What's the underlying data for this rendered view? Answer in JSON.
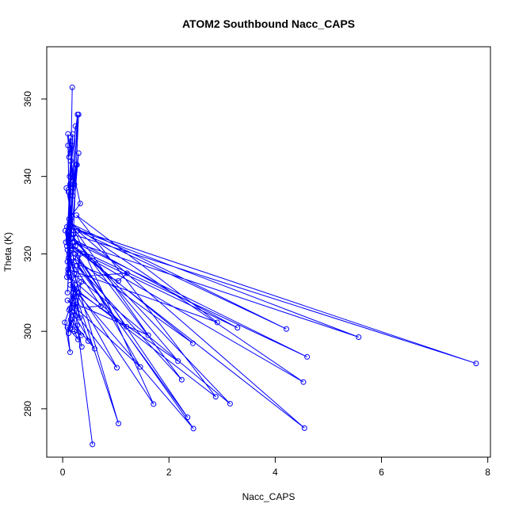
{
  "chart_data": {
    "type": "line",
    "title": "ATOM2 Southbound Nacc_CAPS",
    "xlabel": "Nacc_CAPS",
    "ylabel": "Theta (K)",
    "xlim": [
      -0.3,
      8.05
    ],
    "ylim": [
      267.5,
      373.5
    ],
    "xticks": [
      0,
      2,
      4,
      6,
      8
    ],
    "yticks": [
      280,
      300,
      320,
      340,
      360
    ],
    "grid": false,
    "line_color": "#0000ff",
    "markers": "open-circle",
    "series": [
      {
        "points": [
          [
            0.18,
            363.0
          ],
          [
            0.12,
            320.0
          ],
          [
            0.24,
            353.0
          ],
          [
            0.09,
            310.0
          ],
          [
            0.28,
            356.0
          ],
          [
            0.13,
            340.0
          ],
          [
            0.17,
            348.0
          ],
          [
            0.11,
            326.0
          ],
          [
            0.3,
            346.0
          ],
          [
            0.1,
            315.0
          ],
          [
            0.19,
            351.0
          ],
          [
            0.14,
            338.0
          ],
          [
            0.27,
            343.0
          ],
          [
            0.08,
            322.0
          ],
          [
            0.15,
            344.0
          ],
          [
            0.33,
            333.0
          ],
          [
            0.12,
            329.0
          ],
          [
            0.1,
            351.0
          ],
          [
            0.22,
            338.0
          ],
          [
            0.07,
            337.0
          ],
          [
            0.16,
            330.0
          ],
          [
            0.08,
            327.0
          ],
          [
            0.06,
            323.0
          ],
          [
            0.19,
            335.0
          ],
          [
            0.09,
            321.0
          ],
          [
            0.24,
            322.0
          ],
          [
            0.11,
            336.0
          ],
          [
            0.17,
            306.0
          ],
          [
            0.1,
            348.0
          ],
          [
            0.12,
            345.0
          ],
          [
            0.14,
            350.0
          ],
          [
            0.2,
            337.0
          ],
          [
            0.25,
            343.0
          ],
          [
            0.15,
            329.0
          ],
          [
            0.3,
            356.0
          ],
          [
            0.2,
            325.0
          ],
          [
            7.78,
            291.7
          ],
          [
            0.12,
            327.0
          ],
          [
            5.57,
            298.5
          ],
          [
            0.22,
            323.0
          ],
          [
            4.6,
            293.4
          ],
          [
            0.16,
            322.0
          ],
          [
            4.55,
            275.0
          ],
          [
            0.28,
            326.0
          ],
          [
            4.21,
            300.6
          ],
          [
            0.13,
            328.0
          ],
          [
            4.53,
            286.9
          ],
          [
            0.24,
            321.0
          ],
          [
            3.29,
            300.9
          ],
          [
            0.18,
            324.0
          ],
          [
            3.15,
            281.3
          ],
          [
            0.1,
            316.0
          ],
          [
            2.91,
            302.3
          ],
          [
            0.26,
            330.0
          ],
          [
            2.88,
            283.1
          ],
          [
            0.14,
            312.0
          ],
          [
            2.46,
            274.9
          ],
          [
            0.2,
            319.0
          ],
          [
            2.45,
            296.9
          ],
          [
            0.11,
            323.0
          ],
          [
            2.35,
            277.8
          ],
          [
            0.27,
            317.0
          ],
          [
            2.24,
            287.5
          ],
          [
            0.16,
            325.0
          ],
          [
            2.17,
            292.3
          ],
          [
            0.3,
            310.0
          ],
          [
            1.71,
            281.2
          ],
          [
            0.19,
            327.0
          ],
          [
            1.61,
            299.0
          ],
          [
            0.09,
            308.0
          ],
          [
            1.46,
            290.8
          ],
          [
            0.23,
            320.0
          ],
          [
            1.2,
            301.2
          ],
          [
            0.13,
            314.0
          ],
          [
            1.21,
            315.0
          ],
          [
            1.05,
            313.0
          ],
          [
            0.15,
            318.0
          ],
          [
            1.05,
            276.2
          ],
          [
            0.21,
            311.0
          ],
          [
            1.02,
            290.6
          ],
          [
            0.17,
            306.0
          ],
          [
            0.72,
            306.5
          ],
          [
            0.11,
            319.0
          ],
          [
            0.56,
            270.8
          ],
          [
            0.25,
            304.0
          ],
          [
            0.35,
            312.8
          ],
          [
            0.14,
            306.0
          ],
          [
            0.33,
            320.0
          ],
          [
            0.19,
            300.5
          ],
          [
            0.12,
            305.5
          ],
          [
            0.04,
            302.3
          ],
          [
            0.14,
            294.6
          ],
          [
            0.09,
            301.0
          ],
          [
            0.29,
            297.9
          ],
          [
            0.22,
            300.0
          ],
          [
            0.35,
            299.0
          ],
          [
            0.27,
            301.5
          ],
          [
            0.36,
            296.0
          ],
          [
            0.18,
            305.0
          ],
          [
            0.6,
            295.5
          ],
          [
            0.15,
            303.0
          ],
          [
            0.48,
            297.5
          ],
          [
            0.25,
            307.0
          ],
          [
            0.14,
            300.8
          ],
          [
            0.2,
            310.0
          ],
          [
            0.32,
            303.5
          ],
          [
            0.23,
            312.0
          ],
          [
            0.11,
            299.5
          ],
          [
            0.17,
            314.0
          ],
          [
            0.26,
            309.0
          ],
          [
            0.09,
            318.0
          ],
          [
            0.16,
            324.0
          ],
          [
            0.05,
            326.0
          ],
          [
            0.13,
            320.5
          ],
          [
            0.22,
            315.0
          ],
          [
            0.18,
            323.0
          ],
          [
            0.1,
            325.0
          ],
          [
            0.08,
            314.0
          ],
          [
            0.15,
            321.0
          ]
        ]
      }
    ]
  }
}
